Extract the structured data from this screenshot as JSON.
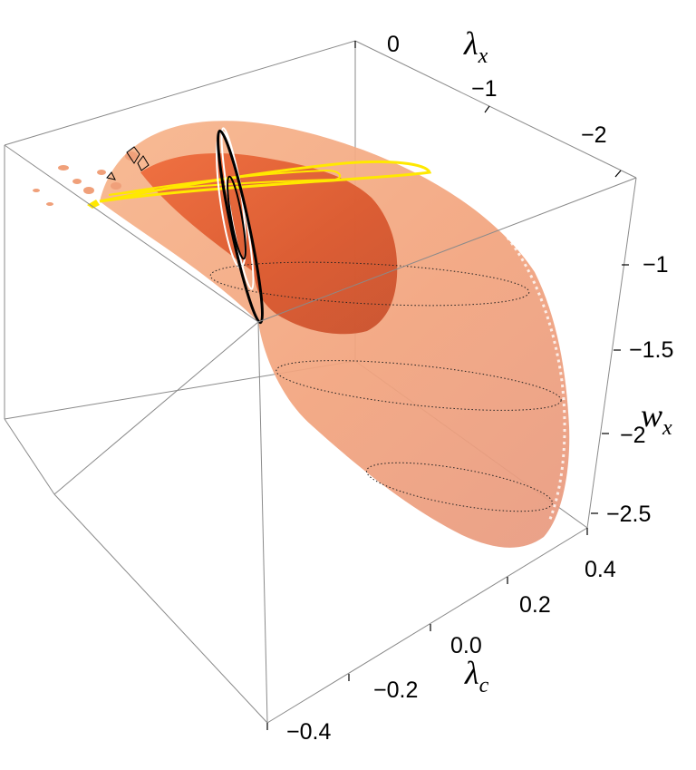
{
  "chart_data": {
    "type": "surface3d",
    "axes": {
      "lambda_x": {
        "label": "λ",
        "sub": "x",
        "ticks": [
          "0",
          "−1",
          "−2"
        ]
      },
      "w_x": {
        "label": "w",
        "sub": "x",
        "ticks": [
          "−1",
          "−1.5",
          "−2",
          "−2.5"
        ]
      },
      "lambda_c": {
        "label": "λ",
        "sub": "c",
        "ticks": [
          "0.4",
          "0.2",
          "0.0",
          "−0.2",
          "−0.4"
        ]
      }
    },
    "colors": {
      "outer_surface": "#f4a97c",
      "inner_surface": "#d9582c",
      "yellow_curve": "#ffe800",
      "black_curve": "#000000",
      "white_curve": "#ffffff",
      "box": "#8a8a8a"
    },
    "legend": "none"
  }
}
